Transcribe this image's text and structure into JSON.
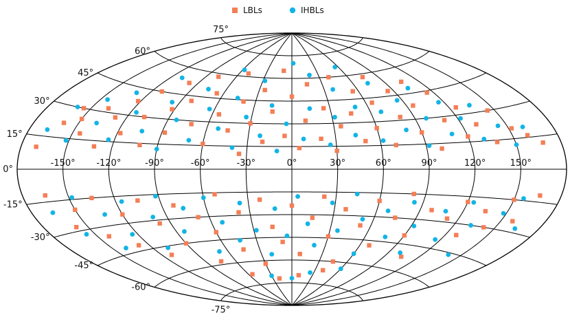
{
  "chart_data": {
    "type": "scatter",
    "projection": "aitoff",
    "x_ticks": [
      -150,
      -120,
      -90,
      -60,
      -30,
      0,
      30,
      60,
      90,
      120,
      150
    ],
    "x_tick_labels": [
      "-150°",
      "-120°",
      "-90°",
      "-60°",
      "-30°",
      "0°",
      "30°",
      "60°",
      "90°",
      "120°",
      "150°"
    ],
    "y_ticks": [
      75,
      60,
      45,
      30,
      15,
      0,
      -15,
      -30,
      -45,
      -60,
      -75
    ],
    "y_tick_labels": [
      "75°",
      "60°",
      "45°",
      "30°",
      "15°",
      "0°",
      "-15°",
      "-30°",
      "-45°",
      "-60°",
      "-75°"
    ],
    "xlim": [
      -180,
      180
    ],
    "ylim": [
      -90,
      90
    ],
    "grid": true,
    "legend_position": "top-center",
    "colors": {
      "LBLs": "#f47e56",
      "IHBLs": "#12b4e6"
    },
    "series": [
      {
        "name": "LBLs",
        "marker": "square",
        "points": [
          [
            -170,
            10
          ],
          [
            -160,
            22
          ],
          [
            -155,
            30
          ],
          [
            -150,
            25
          ],
          [
            -145,
            18
          ],
          [
            -138,
            32
          ],
          [
            -132,
            12
          ],
          [
            -128,
            28
          ],
          [
            -122,
            38
          ],
          [
            -118,
            20
          ],
          [
            -112,
            45
          ],
          [
            -108,
            30
          ],
          [
            -102,
            14
          ],
          [
            -98,
            52
          ],
          [
            -92,
            36
          ],
          [
            -88,
            22
          ],
          [
            -82,
            42
          ],
          [
            -78,
            58
          ],
          [
            -72,
            28
          ],
          [
            -66,
            48
          ],
          [
            -60,
            16
          ],
          [
            -55,
            35
          ],
          [
            -50,
            62
          ],
          [
            -45,
            25
          ],
          [
            -40,
            44
          ],
          [
            -35,
            10
          ],
          [
            -30,
            30
          ],
          [
            -25,
            52
          ],
          [
            -20,
            18
          ],
          [
            -15,
            38
          ],
          [
            -10,
            65
          ],
          [
            -5,
            22
          ],
          [
            0,
            48
          ],
          [
            5,
            14
          ],
          [
            10,
            32
          ],
          [
            15,
            56
          ],
          [
            20,
            20
          ],
          [
            25,
            40
          ],
          [
            30,
            12
          ],
          [
            35,
            28
          ],
          [
            40,
            60
          ],
          [
            45,
            36
          ],
          [
            50,
            18
          ],
          [
            55,
            50
          ],
          [
            60,
            26
          ],
          [
            65,
            42
          ],
          [
            70,
            15
          ],
          [
            75,
            58
          ],
          [
            80,
            32
          ],
          [
            85,
            48
          ],
          [
            90,
            22
          ],
          [
            95,
            38
          ],
          [
            100,
            12
          ],
          [
            105,
            52
          ],
          [
            110,
            28
          ],
          [
            115,
            44
          ],
          [
            120,
            18
          ],
          [
            125,
            34
          ],
          [
            130,
            24
          ],
          [
            138,
            14
          ],
          [
            145,
            30
          ],
          [
            152,
            20
          ],
          [
            160,
            16
          ],
          [
            168,
            12
          ],
          [
            -165,
            -12
          ],
          [
            -158,
            -28
          ],
          [
            -150,
            -20
          ],
          [
            -142,
            -35
          ],
          [
            -135,
            -15
          ],
          [
            -128,
            -42
          ],
          [
            -120,
            -25
          ],
          [
            -112,
            -50
          ],
          [
            -105,
            -18
          ],
          [
            -98,
            -32
          ],
          [
            -90,
            -45
          ],
          [
            -82,
            -22
          ],
          [
            -75,
            -58
          ],
          [
            -68,
            -30
          ],
          [
            -60,
            -40
          ],
          [
            -52,
            -16
          ],
          [
            -45,
            -52
          ],
          [
            -38,
            -28
          ],
          [
            -30,
            -62
          ],
          [
            -22,
            -20
          ],
          [
            -15,
            -38
          ],
          [
            -8,
            -48
          ],
          [
            0,
            -24
          ],
          [
            8,
            -56
          ],
          [
            15,
            -32
          ],
          [
            22,
            -18
          ],
          [
            30,
            -44
          ],
          [
            38,
            -26
          ],
          [
            45,
            -60
          ],
          [
            52,
            -36
          ],
          [
            60,
            -20
          ],
          [
            68,
            -48
          ],
          [
            75,
            -30
          ],
          [
            82,
            -15
          ],
          [
            90,
            -40
          ],
          [
            98,
            -24
          ],
          [
            105,
            -52
          ],
          [
            112,
            -28
          ],
          [
            120,
            -18
          ],
          [
            128,
            -36
          ],
          [
            135,
            -22
          ],
          [
            142,
            -30
          ],
          [
            150,
            -15
          ],
          [
            158,
            -25
          ],
          [
            166,
            -12
          ],
          [
            -20,
            -72
          ],
          [
            10,
            -70
          ],
          [
            40,
            -66
          ],
          [
            -55,
            -68
          ]
        ]
      },
      {
        "name": "IHBLs",
        "marker": "circle",
        "points": [
          [
            -168,
            18
          ],
          [
            -160,
            30
          ],
          [
            -152,
            14
          ],
          [
            -145,
            36
          ],
          [
            -138,
            24
          ],
          [
            -130,
            42
          ],
          [
            -124,
            16
          ],
          [
            -116,
            32
          ],
          [
            -110,
            54
          ],
          [
            -104,
            22
          ],
          [
            -96,
            40
          ],
          [
            -90,
            12
          ],
          [
            -84,
            30
          ],
          [
            -76,
            50
          ],
          [
            -70,
            18
          ],
          [
            -64,
            38
          ],
          [
            -58,
            64
          ],
          [
            -52,
            26
          ],
          [
            -46,
            46
          ],
          [
            -40,
            14
          ],
          [
            -34,
            34
          ],
          [
            -28,
            58
          ],
          [
            -22,
            22
          ],
          [
            -16,
            42
          ],
          [
            -10,
            12
          ],
          [
            -4,
            30
          ],
          [
            2,
            70
          ],
          [
            8,
            20
          ],
          [
            14,
            40
          ],
          [
            20,
            62
          ],
          [
            26,
            16
          ],
          [
            32,
            34
          ],
          [
            38,
            52
          ],
          [
            44,
            22
          ],
          [
            50,
            40
          ],
          [
            56,
            66
          ],
          [
            62,
            18
          ],
          [
            68,
            36
          ],
          [
            74,
            54
          ],
          [
            80,
            24
          ],
          [
            86,
            42
          ],
          [
            92,
            14
          ],
          [
            98,
            30
          ],
          [
            104,
            48
          ],
          [
            110,
            20
          ],
          [
            116,
            38
          ],
          [
            122,
            28
          ],
          [
            130,
            16
          ],
          [
            136,
            34
          ],
          [
            144,
            22
          ],
          [
            150,
            12
          ],
          [
            160,
            20
          ],
          [
            -166,
            -20
          ],
          [
            -156,
            -32
          ],
          [
            -148,
            -14
          ],
          [
            -140,
            -42
          ],
          [
            -132,
            -24
          ],
          [
            -124,
            -36
          ],
          [
            -116,
            -18
          ],
          [
            -108,
            -46
          ],
          [
            -100,
            -28
          ],
          [
            -92,
            -16
          ],
          [
            -84,
            -38
          ],
          [
            -76,
            -24
          ],
          [
            -68,
            -52
          ],
          [
            -60,
            -18
          ],
          [
            -52,
            -34
          ],
          [
            -44,
            -46
          ],
          [
            -36,
            -22
          ],
          [
            -28,
            -40
          ],
          [
            -20,
            -56
          ],
          [
            -12,
            -26
          ],
          [
            -4,
            -44
          ],
          [
            4,
            -18
          ],
          [
            12,
            -36
          ],
          [
            20,
            -50
          ],
          [
            28,
            -22
          ],
          [
            36,
            -40
          ],
          [
            44,
            -16
          ],
          [
            52,
            -32
          ],
          [
            60,
            -54
          ],
          [
            68,
            -26
          ],
          [
            76,
            -42
          ],
          [
            84,
            -20
          ],
          [
            92,
            -34
          ],
          [
            100,
            -50
          ],
          [
            108,
            -24
          ],
          [
            116,
            -40
          ],
          [
            124,
            -18
          ],
          [
            132,
            -30
          ],
          [
            140,
            -46
          ],
          [
            148,
            -22
          ],
          [
            156,
            -14
          ],
          [
            164,
            -28
          ],
          [
            -30,
            -70
          ],
          [
            0,
            -72
          ],
          [
            25,
            -68
          ],
          [
            60,
            -64
          ]
        ]
      }
    ]
  }
}
